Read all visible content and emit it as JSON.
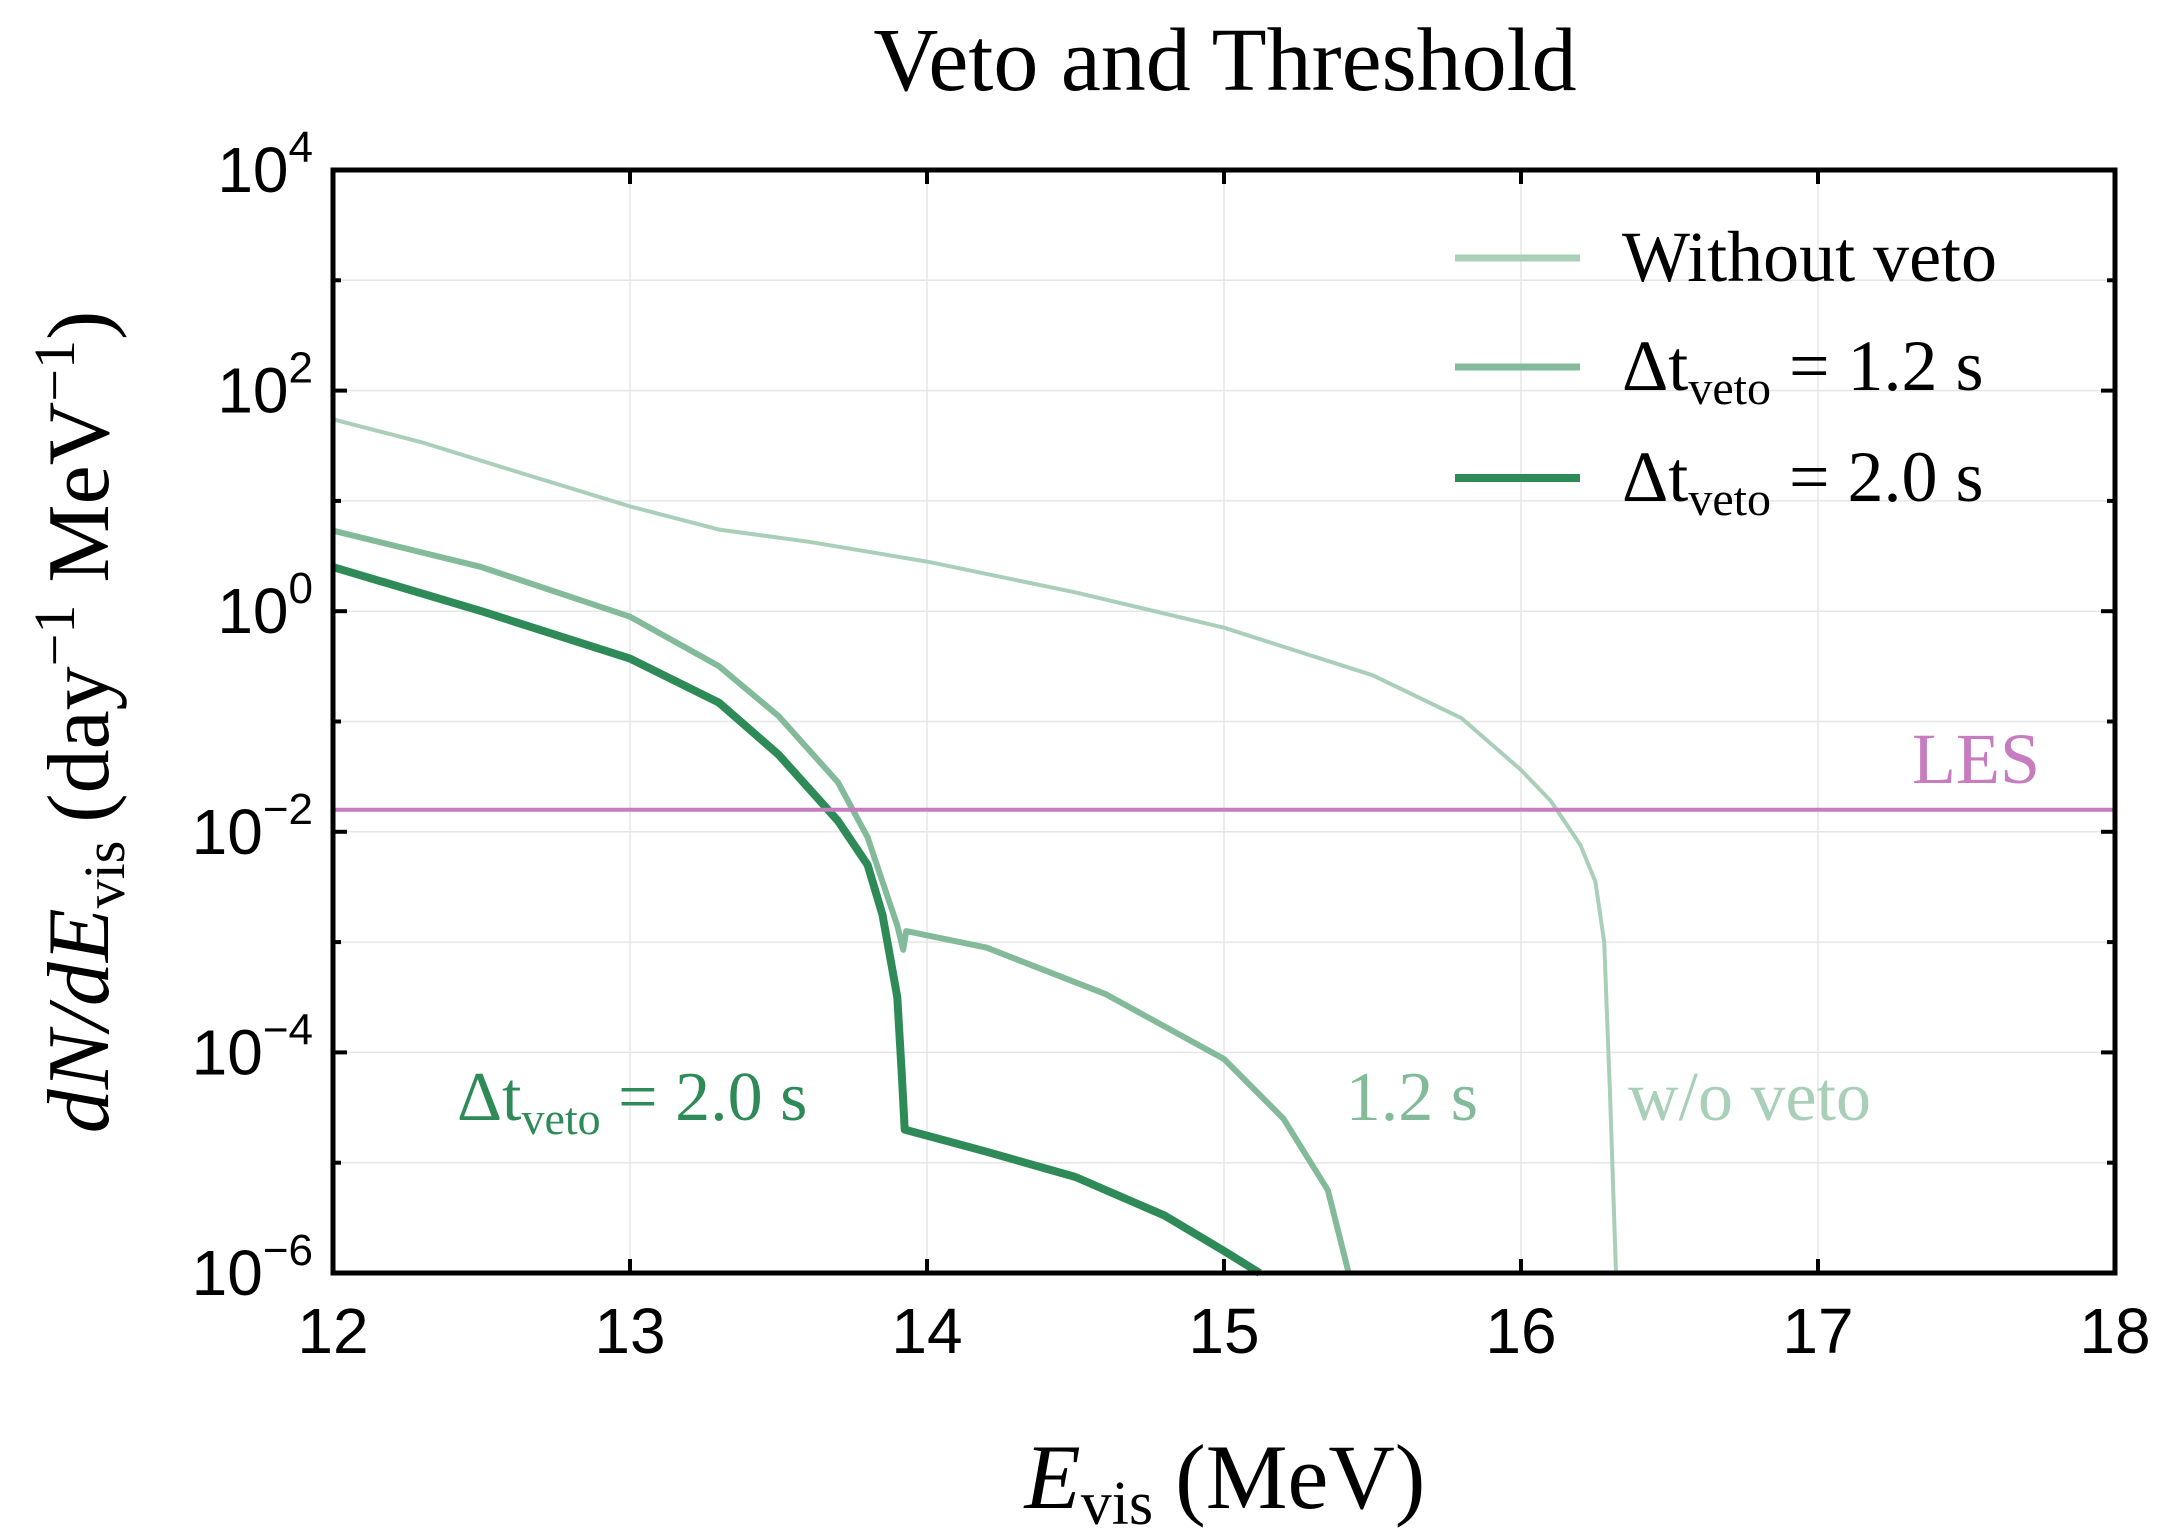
{
  "chart_data": {
    "type": "line",
    "title": "Veto and Threshold",
    "xlabel": {
      "italic": "E",
      "sub": "vis",
      "unit": "(MeV)"
    },
    "ylabel": {
      "main": "dN/dE",
      "sub": "vis",
      "paren_open": "(day",
      "sup1": "−1",
      "mid": " MeV",
      "sup2": "−1",
      "paren_close": ")"
    },
    "xlim": [
      12,
      18
    ],
    "ylim_log10": [
      -6,
      4
    ],
    "x_ticks": [
      "12",
      "13",
      "14",
      "15",
      "16",
      "17",
      "18"
    ],
    "y_ticks": [
      {
        "base": "10",
        "exp": "4"
      },
      {
        "base": "10",
        "exp": "2"
      },
      {
        "base": "10",
        "exp": "0"
      },
      {
        "base": "10",
        "exp": "−2"
      },
      {
        "base": "10",
        "exp": "−4"
      },
      {
        "base": "10",
        "exp": "−6"
      }
    ],
    "grid": true,
    "legend_position": "top-right",
    "legend": [
      {
        "label": "Without veto"
      },
      {
        "label_pre": "Δt",
        "label_sub": "veto",
        "label_post": " = 1.2 s"
      },
      {
        "label_pre": "Δt",
        "label_sub": "veto",
        "label_post": " = 2.0 s"
      }
    ],
    "annotations": {
      "les": "LES",
      "dt20_pre": "Δt",
      "dt20_sub": "veto",
      "dt20_post": " = 2.0 s",
      "dt12": "1.2 s",
      "wo": "w/o veto"
    },
    "series": [
      {
        "name": "Without veto",
        "color": "#a9cfb9",
        "points_log10": [
          [
            12.0,
            1.74
          ],
          [
            12.3,
            1.53
          ],
          [
            12.6,
            1.28
          ],
          [
            13.0,
            0.95
          ],
          [
            13.3,
            0.74
          ],
          [
            13.6,
            0.63
          ],
          [
            14.0,
            0.45
          ],
          [
            14.5,
            0.17
          ],
          [
            15.0,
            -0.15
          ],
          [
            15.5,
            -0.58
          ],
          [
            15.8,
            -0.97
          ],
          [
            16.0,
            -1.44
          ],
          [
            16.1,
            -1.72
          ],
          [
            16.2,
            -2.12
          ],
          [
            16.25,
            -2.45
          ],
          [
            16.28,
            -3.0
          ],
          [
            16.3,
            -4.4
          ],
          [
            16.32,
            -6.0
          ]
        ]
      },
      {
        "name": "Δt_veto = 1.2 s",
        "color": "#82ba9a",
        "points_log10": [
          [
            12.0,
            0.73
          ],
          [
            12.5,
            0.4
          ],
          [
            13.0,
            -0.05
          ],
          [
            13.3,
            -0.5
          ],
          [
            13.5,
            -0.95
          ],
          [
            13.7,
            -1.55
          ],
          [
            13.8,
            -2.05
          ],
          [
            13.85,
            -2.45
          ],
          [
            13.9,
            -2.85
          ],
          [
            13.92,
            -3.07
          ],
          [
            13.93,
            -2.9
          ],
          [
            14.2,
            -3.05
          ],
          [
            14.6,
            -3.47
          ],
          [
            15.0,
            -4.06
          ],
          [
            15.2,
            -4.6
          ],
          [
            15.35,
            -5.25
          ],
          [
            15.42,
            -6.0
          ]
        ]
      },
      {
        "name": "Δt_veto = 2.0 s",
        "color": "#2e8b57",
        "points_log10": [
          [
            12.0,
            0.4
          ],
          [
            12.5,
            0.0
          ],
          [
            13.0,
            -0.43
          ],
          [
            13.3,
            -0.83
          ],
          [
            13.5,
            -1.3
          ],
          [
            13.7,
            -1.9
          ],
          [
            13.8,
            -2.3
          ],
          [
            13.85,
            -2.75
          ],
          [
            13.88,
            -3.2
          ],
          [
            13.9,
            -3.5
          ],
          [
            13.915,
            -4.2
          ],
          [
            13.925,
            -4.7
          ],
          [
            14.2,
            -4.9
          ],
          [
            14.5,
            -5.13
          ],
          [
            14.8,
            -5.48
          ],
          [
            15.0,
            -5.8
          ],
          [
            15.12,
            -6.0
          ]
        ]
      },
      {
        "name": "LES",
        "color": "#c77cc0",
        "points_log10": [
          [
            12.0,
            -1.8
          ],
          [
            18.0,
            -1.8
          ]
        ]
      }
    ]
  }
}
